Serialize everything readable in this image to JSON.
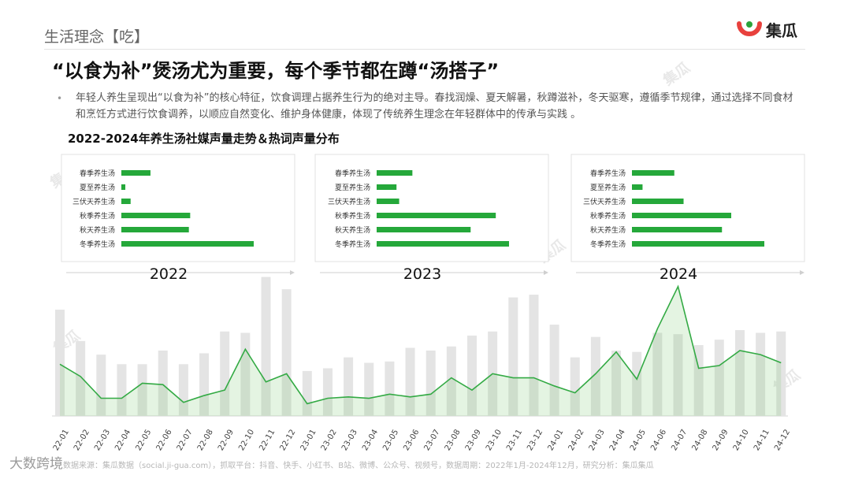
{
  "header": {
    "section_label": "生活理念【吃】",
    "logo_text": "集瓜",
    "headline": "“以食为补”煲汤尤为重要，每个季节都在蹲“汤搭子”"
  },
  "body": {
    "bullet": "•",
    "text": "年轻人养生呈现出“以食为补”的核心特征，饮食调理占据养生行为的绝对主导。春找润燥、夏天解暑，秋蹲滋补，冬天驱寒，遵循季节规律，通过选择不同食材和烹饪方式进行饮食调养，以顺应自然变化、维护身体健康，体现了传统养生理念在年轻群体中的传承与实践 。"
  },
  "chart_title": "2022-2024年养生汤社媒声量走势＆热词声量分布",
  "source": "数据来源：集瓜数据（social.ji-gua.com），抓取平台：抖音、快手、小红书、B站、微博、公众号、视频号，数据周期：2022年1月-2024年12月，研究分析：集瓜集瓜",
  "corner_brand": "大数跨境",
  "colors": {
    "brand_red": "#e8413d",
    "brand_green": "#2ba33a",
    "bar_green": "#25a83a",
    "trend_gray": "#e4e4e4",
    "line_green": "#33aa44"
  },
  "chart_data": [
    {
      "type": "bar",
      "orientation": "horizontal",
      "title": "2022",
      "categories": [
        "春季养生汤",
        "夏至养生汤",
        "三伏天养生汤",
        "秋季养生汤",
        "秋天养生汤",
        "冬季养生汤"
      ],
      "values": [
        22,
        3,
        7,
        52,
        51,
        100
      ]
    },
    {
      "type": "bar",
      "orientation": "horizontal",
      "title": "2023",
      "categories": [
        "春季养生汤",
        "夏至养生汤",
        "三伏天养生汤",
        "秋季养生汤",
        "秋天养生汤",
        "冬季养生汤"
      ],
      "values": [
        27,
        15,
        17,
        90,
        71,
        100
      ]
    },
    {
      "type": "bar",
      "orientation": "horizontal",
      "title": "2024",
      "categories": [
        "春季养生汤",
        "夏至养生汤",
        "三伏天养生汤",
        "秋季养生汤",
        "秋天养生汤",
        "冬季养生汤"
      ],
      "values": [
        32,
        8,
        39,
        75,
        68,
        100
      ]
    },
    {
      "type": "bar+line",
      "categories": [
        "22-01",
        "22-02",
        "22-03",
        "22-04",
        "22-05",
        "22-06",
        "22-07",
        "22-08",
        "22-09",
        "22-10",
        "22-11",
        "22-12",
        "23-01",
        "23-02",
        "23-03",
        "23-04",
        "23-05",
        "23-06",
        "23-07",
        "23-08",
        "23-09",
        "23-10",
        "23-11",
        "23-12",
        "24-01",
        "24-02",
        "24-03",
        "24-04",
        "24-05",
        "24-06",
        "24-07",
        "24-08",
        "24-09",
        "24-10",
        "24-11",
        "24-12"
      ],
      "series": [
        {
          "kind": "bar",
          "values": [
            78,
            55,
            45,
            38,
            38,
            48,
            38,
            46,
            62,
            61,
            102,
            93,
            33,
            35,
            43,
            39,
            40,
            50,
            48,
            51,
            59,
            62,
            87,
            89,
            67,
            43,
            58,
            48,
            47,
            61,
            60,
            52,
            56,
            63,
            61,
            62
          ]
        },
        {
          "kind": "line",
          "values": [
            38,
            29,
            13,
            13,
            24,
            23,
            10,
            15,
            19,
            49,
            25,
            31,
            9,
            13,
            14,
            13,
            16,
            14,
            16,
            28,
            19,
            31,
            28,
            28,
            22,
            17,
            31,
            47,
            27,
            64,
            95,
            35,
            37,
            48,
            45,
            39
          ]
        }
      ]
    }
  ]
}
